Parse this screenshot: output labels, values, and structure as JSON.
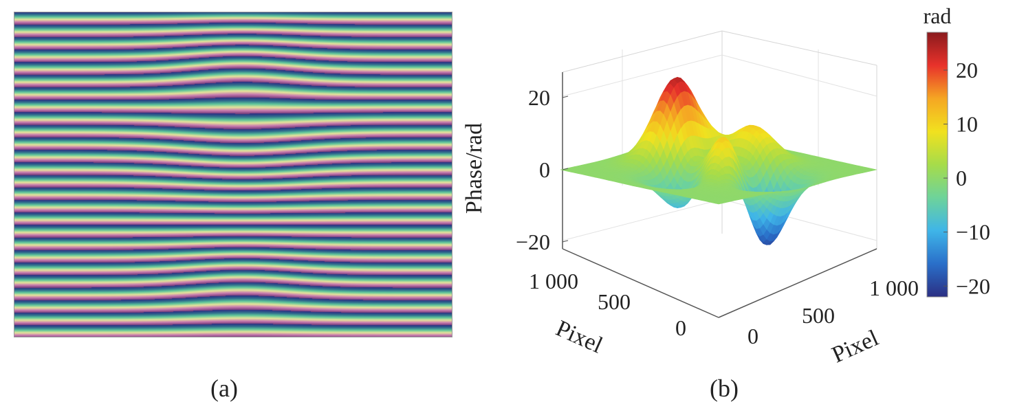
{
  "panel_a": {
    "caption": "(a)"
  },
  "panel_b": {
    "caption": "(b)"
  },
  "colormap": [
    "#2b2f83",
    "#2a6fc9",
    "#3fb5e8",
    "#6ed39a",
    "#a6dc4a",
    "#f1e11f",
    "#f5a623",
    "#e8322b",
    "#8a1a1d"
  ],
  "chart_data": [
    {
      "type": "heatmap",
      "description": "fringe pattern image",
      "fringe_count": 26,
      "colormap": [
        "#2b2f83",
        "#2f6f8e",
        "#5fc79a",
        "#e6e59a",
        "#c97bb0",
        "#7a3f7c"
      ]
    },
    {
      "type": "surface",
      "zlabel": "Phase/rad",
      "xlabel": "Pixel",
      "ylabel": "Pixel",
      "x_ticks": [
        "0",
        "500",
        "1 000"
      ],
      "y_ticks": [
        "0",
        "500",
        "1 000"
      ],
      "z_ticks": [
        "−20",
        "0",
        "20"
      ],
      "zlim": [
        -22,
        27
      ],
      "colorbar": {
        "label": "rad",
        "ticks": [
          "20",
          "10",
          "0",
          "−10",
          "−20"
        ],
        "range": [
          -22,
          27
        ]
      },
      "peaks": [
        {
          "x": 0.5,
          "y": 1.6,
          "z": 27
        },
        {
          "x": 0.55,
          "y": 0.2,
          "z": 11
        },
        {
          "x": 1.2,
          "y": 0.7,
          "z": 12
        },
        {
          "x": 0.2,
          "y": -0.15,
          "z": -6
        },
        {
          "x": 0.25,
          "y": -0.55,
          "z": -9
        },
        {
          "x": 0.0,
          "y": -1.5,
          "z": -22
        }
      ]
    }
  ]
}
